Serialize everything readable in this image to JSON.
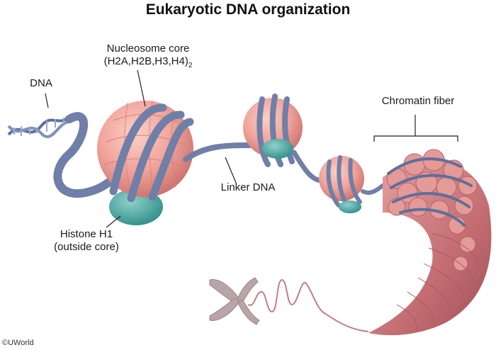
{
  "title": "Eukaryotic DNA organization",
  "labels": {
    "dna": "DNA",
    "nucleosome_line1": "Nucleosome core",
    "nucleosome_line2": "(H2A,H2B,H3,H4)",
    "nucleosome_subscript": "2",
    "linker": "Linker DNA",
    "h1_line1": "Histone H1",
    "h1_line2": "(outside core)",
    "chromatin": "Chromatin fiber"
  },
  "credit": "©UWorld",
  "colors": {
    "histone_core": "#f0a39a",
    "histone_core_dark": "#d97c73",
    "dna_strand": "#6f7fa8",
    "dna_strand_dark": "#4f5d85",
    "histone_h1": "#4fa9a3",
    "fiber": "#c9757a",
    "chromosome": "#b9a4a8"
  }
}
